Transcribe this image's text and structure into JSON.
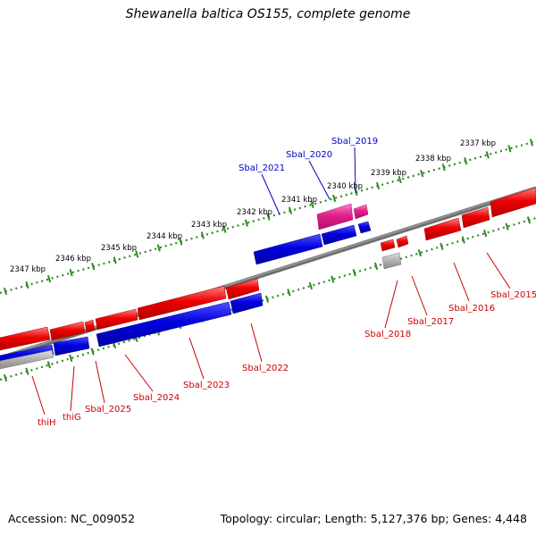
{
  "title": "Shewanella baltica OS155, complete genome",
  "footer": {
    "accession": "Accession: NC_009052",
    "stats": "Topology: circular; Length: 5,127,376 bp; Genes: 4,448"
  },
  "colors": {
    "backbone": "#7a7a7a",
    "tick": "#2e8b22",
    "forward_gene": "#e60000",
    "reverse_gene": "#0000dd",
    "highlight_gene": "#e0208a",
    "pseudo_gene": "#aaaaaa",
    "label_red": "#cc0000",
    "label_blue": "#0000cc"
  },
  "scale_labels": [
    "2337 kbp",
    "2338 kbp",
    "2339 kbp",
    "2340 kbp",
    "2341 kbp",
    "2342 kbp",
    "2343 kbp",
    "2344 kbp",
    "2345 kbp",
    "2346 kbp",
    "2347 kbp"
  ],
  "gene_labels": [
    {
      "name": "Sbal_2019",
      "color": "blue"
    },
    {
      "name": "Sbal_2020",
      "color": "blue"
    },
    {
      "name": "Sbal_2021",
      "color": "blue"
    },
    {
      "name": "Sbal_2015",
      "color": "red"
    },
    {
      "name": "Sbal_2016",
      "color": "red"
    },
    {
      "name": "Sbal_2017",
      "color": "red"
    },
    {
      "name": "Sbal_2018",
      "color": "red"
    },
    {
      "name": "Sbal_2022",
      "color": "red"
    },
    {
      "name": "Sbal_2023",
      "color": "red"
    },
    {
      "name": "Sbal_2024",
      "color": "red"
    },
    {
      "name": "Sbal_2025",
      "color": "red"
    },
    {
      "name": "thiG",
      "color": "red"
    },
    {
      "name": "thiH",
      "color": "red"
    }
  ]
}
